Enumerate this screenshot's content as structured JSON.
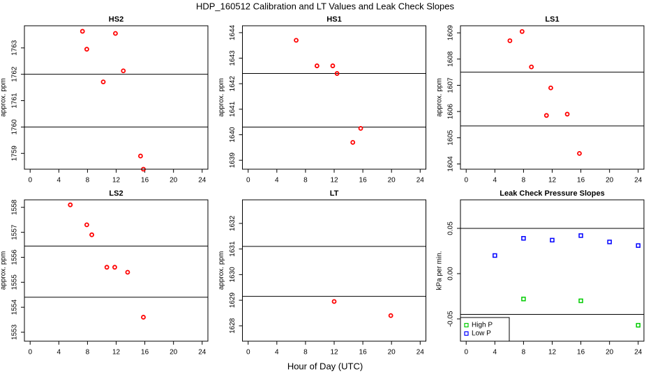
{
  "title": "HDP_160512  Calibration and LT Values and Leak Check Slopes",
  "xlabel": "Hour of Day (UTC)",
  "chart_data": [
    {
      "type": "scatter",
      "title": "HS2",
      "ylabel": "approx. ppm",
      "x": [
        7.3,
        7.9,
        11.9,
        13.0,
        10.2,
        15.4,
        15.8
      ],
      "values": [
        1763.63,
        1762.95,
        1763.55,
        1762.13,
        1761.71,
        1758.9,
        1758.4
      ],
      "color": "#ff0000",
      "xlim": [
        -0.8,
        24.8
      ],
      "xticks": [
        0,
        4,
        8,
        12,
        16,
        20,
        24
      ],
      "ylim": [
        1758.4,
        1763.84
      ],
      "yticks": [
        1759,
        1760,
        1761,
        1762,
        1763
      ],
      "hlines": [
        1762,
        1760
      ]
    },
    {
      "type": "scatter",
      "title": "HS1",
      "ylabel": "approx. ppm",
      "x": [
        6.7,
        9.6,
        11.8,
        12.4,
        14.6,
        15.7
      ],
      "values": [
        1643.7,
        1642.7,
        1642.7,
        1642.4,
        1639.7,
        1640.25
      ],
      "color": "#ff0000",
      "xlim": [
        -0.8,
        24.8
      ],
      "xticks": [
        0,
        4,
        8,
        12,
        16,
        20,
        24
      ],
      "ylim": [
        1638.65,
        1644.27
      ],
      "yticks": [
        1639,
        1640,
        1641,
        1642,
        1643,
        1644
      ],
      "hlines": [
        1642.4,
        1640.3
      ]
    },
    {
      "type": "scatter",
      "title": "LS1",
      "ylabel": "approx. ppm",
      "x": [
        6.1,
        7.8,
        9.1,
        11.8,
        11.2,
        14.1,
        15.8
      ],
      "values": [
        1608.7,
        1609.05,
        1607.7,
        1606.9,
        1605.85,
        1605.9,
        1604.4
      ],
      "color": "#ff0000",
      "xlim": [
        -0.8,
        24.8
      ],
      "xticks": [
        0,
        4,
        8,
        12,
        16,
        20,
        24
      ],
      "ylim": [
        1603.8,
        1609.27
      ],
      "yticks": [
        1604,
        1605,
        1606,
        1607,
        1608,
        1609
      ],
      "hlines": [
        1607.5,
        1605.45
      ]
    },
    {
      "type": "scatter",
      "title": "LS2",
      "ylabel": "approx. ppm",
      "x": [
        5.6,
        7.9,
        8.6,
        10.7,
        11.8,
        13.6,
        15.8
      ],
      "values": [
        1558.1,
        1557.3,
        1556.9,
        1555.6,
        1555.6,
        1555.4,
        1553.6
      ],
      "color": "#ff0000",
      "xlim": [
        -0.8,
        24.8
      ],
      "xticks": [
        0,
        4,
        8,
        12,
        16,
        20,
        24
      ],
      "ylim": [
        1552.64,
        1558.3
      ],
      "yticks": [
        1553,
        1554,
        1555,
        1556,
        1557,
        1558
      ],
      "hlines": [
        1556.45,
        1554.4
      ]
    },
    {
      "type": "scatter",
      "title": "LT",
      "ylabel": "approx. ppm",
      "x": [
        12,
        19.9
      ],
      "values": [
        1628.95,
        1628.4
      ],
      "color": "#ff0000",
      "xlim": [
        -0.8,
        24.8
      ],
      "xticks": [
        0,
        4,
        8,
        12,
        16,
        20,
        24
      ],
      "ylim": [
        1627.4,
        1632.92
      ],
      "yticks": [
        1628,
        1629,
        1630,
        1631,
        1632
      ],
      "hlines": [
        1631.1,
        1629.15
      ]
    },
    {
      "type": "scatter",
      "title": "Leak Check Pressure Slopes",
      "ylabel": "kPa per min.",
      "xlim": [
        -0.8,
        24.8
      ],
      "xticks": [
        0,
        4,
        8,
        12,
        16,
        20,
        24
      ],
      "ylim": [
        -0.0746,
        0.0815
      ],
      "yticks": [
        -0.05,
        {
          "value": 0,
          "label": "0.00"
        },
        0.05
      ],
      "hlines": [
        0.05,
        -0.045
      ],
      "legend": "bottomleft",
      "series": [
        {
          "name": "High P",
          "color": "#00cc00",
          "x": [
            8,
            16,
            24
          ],
          "values": [
            -0.028,
            -0.03,
            -0.057
          ]
        },
        {
          "name": "Low P",
          "color": "#0000ff",
          "x": [
            4,
            8,
            12,
            16,
            20,
            24
          ],
          "values": [
            0.02,
            0.039,
            0.037,
            0.042,
            0.035,
            0.031
          ]
        }
      ]
    }
  ]
}
